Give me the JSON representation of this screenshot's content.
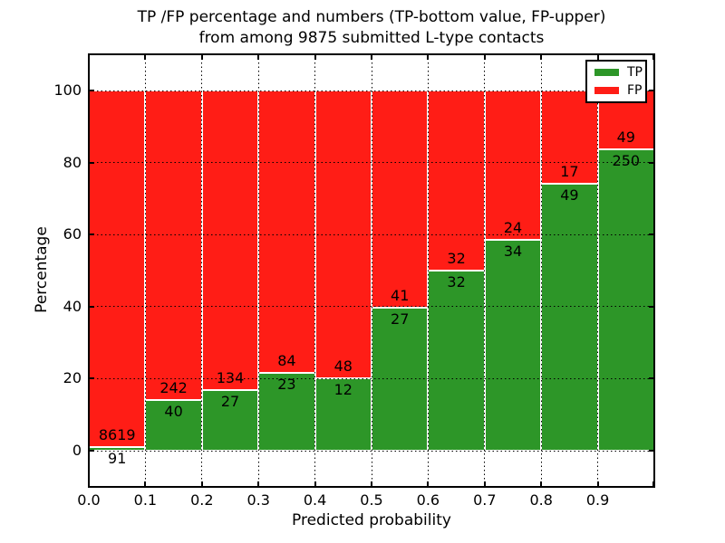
{
  "title": {
    "line1": "TP /FP percentage and numbers (TP-bottom value, FP-upper)",
    "line2": "from among 9875 submitted L-type contacts"
  },
  "axes": {
    "xlabel": "Predicted probability",
    "ylabel": "Percentage",
    "x_tick_labels": [
      "0.0",
      "0.1",
      "0.2",
      "0.3",
      "0.4",
      "0.5",
      "0.6",
      "0.7",
      "0.8",
      "0.9"
    ],
    "y_tick_labels": [
      "0",
      "20",
      "40",
      "60",
      "80",
      "100"
    ],
    "y_tick_values": [
      0,
      20,
      40,
      60,
      80,
      100
    ],
    "xlim": [
      0.0,
      1.0
    ],
    "ylim": [
      -10,
      110
    ],
    "grid_style": "dotted"
  },
  "legend": {
    "position": "upper-right",
    "entries": [
      {
        "label": "TP",
        "color": "#2D9628"
      },
      {
        "label": "FP",
        "color": "#FF1D16"
      }
    ]
  },
  "colors": {
    "tp_green": "#2D9628",
    "fp_red": "#FF1D16",
    "bar_edge": "#FFFFFF",
    "grid": "#000000",
    "background": "#FFFFFF",
    "text": "#000000"
  },
  "chart_data": {
    "type": "bar",
    "subtype": "stacked-100-percent",
    "title": "TP /FP percentage and numbers (TP-bottom value, FP-upper) from among 9875 submitted L-type contacts",
    "xlabel": "Predicted probability",
    "ylabel": "Percentage",
    "categories": [
      "0.0",
      "0.1",
      "0.2",
      "0.3",
      "0.4",
      "0.5",
      "0.6",
      "0.7",
      "0.8",
      "0.9"
    ],
    "bin_width": 0.1,
    "series": [
      {
        "name": "TP",
        "color": "#2D9628",
        "counts": [
          91,
          40,
          27,
          23,
          12,
          27,
          32,
          34,
          49,
          250
        ]
      },
      {
        "name": "FP",
        "color": "#FF1D16",
        "counts": [
          8619,
          242,
          134,
          84,
          48,
          41,
          32,
          24,
          17,
          49
        ]
      }
    ],
    "tp_percent": [
      1.04,
      14.18,
      16.77,
      21.5,
      20.0,
      39.71,
      50.0,
      58.62,
      74.24,
      83.61
    ],
    "total_contacts": 9875,
    "ylim": [
      -10,
      110
    ],
    "legend_position": "upper right",
    "grid": true
  }
}
